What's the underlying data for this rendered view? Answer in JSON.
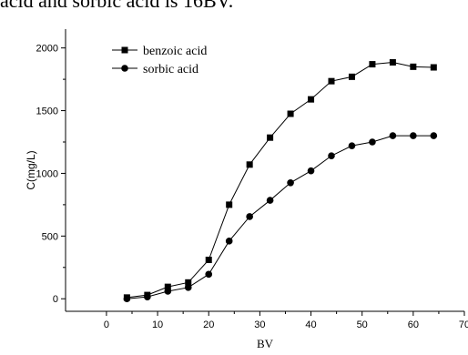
{
  "document": {
    "caption_fragment": "acid and sorbic acid is 16BV."
  },
  "chart_data": {
    "type": "line",
    "title": "",
    "xlabel": "BV",
    "ylabel": "C(mg/L)",
    "xlim": [
      -8,
      70
    ],
    "ylim": [
      -100,
      2150
    ],
    "x_ticks": [
      0,
      10,
      20,
      30,
      40,
      50,
      60,
      70
    ],
    "y_ticks": [
      0,
      500,
      1000,
      1500,
      2000
    ],
    "legend_position": "top-left",
    "grid": false,
    "series": [
      {
        "name": "benzoic acid",
        "marker": "square",
        "color": "#000000",
        "x": [
          4,
          8,
          12,
          16,
          20,
          24,
          28,
          32,
          36,
          40,
          44,
          48,
          52,
          56,
          60,
          64
        ],
        "y": [
          10,
          30,
          95,
          130,
          310,
          750,
          1070,
          1285,
          1475,
          1590,
          1735,
          1770,
          1870,
          1885,
          1850,
          1845
        ]
      },
      {
        "name": "sorbic acid",
        "marker": "circle",
        "color": "#000000",
        "x": [
          4,
          8,
          12,
          16,
          20,
          24,
          28,
          32,
          36,
          40,
          44,
          48,
          52,
          56,
          60,
          64
        ],
        "y": [
          0,
          15,
          60,
          90,
          195,
          460,
          655,
          785,
          925,
          1020,
          1140,
          1220,
          1250,
          1300,
          1300,
          1300
        ]
      }
    ]
  }
}
